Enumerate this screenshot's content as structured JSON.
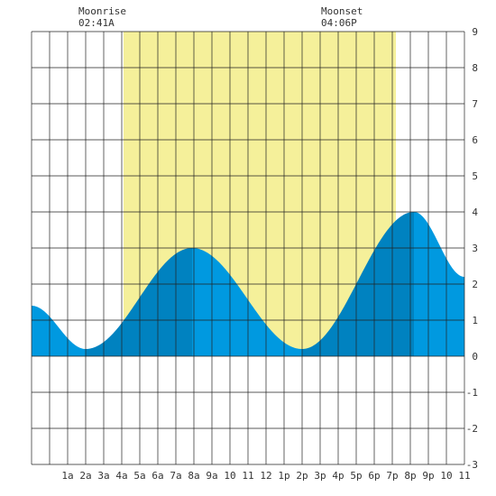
{
  "moon": {
    "rise_label": "Moonrise",
    "rise_time": "02:41A",
    "set_label": "Moonset",
    "set_time": "04:06P"
  },
  "colors": {
    "background": "#ffffff",
    "daylight": "#f5f09a",
    "tide_light": "#0099e0",
    "tide_dark": "#0082c0",
    "grid": "#222222",
    "text": "#333333"
  },
  "chart_data": {
    "type": "area",
    "x_unit": "hour of day",
    "xlim": [
      -1,
      23
    ],
    "ylim": [
      -3,
      9
    ],
    "x_tick_labels": [
      {
        "hour": 1,
        "label": "1a"
      },
      {
        "hour": 2,
        "label": "2a"
      },
      {
        "hour": 3,
        "label": "3a"
      },
      {
        "hour": 4,
        "label": "4a"
      },
      {
        "hour": 5,
        "label": "5a"
      },
      {
        "hour": 6,
        "label": "6a"
      },
      {
        "hour": 7,
        "label": "7a"
      },
      {
        "hour": 8,
        "label": "8a"
      },
      {
        "hour": 9,
        "label": "9a"
      },
      {
        "hour": 10,
        "label": "10"
      },
      {
        "hour": 11,
        "label": "11"
      },
      {
        "hour": 12,
        "label": "12"
      },
      {
        "hour": 13,
        "label": "1p"
      },
      {
        "hour": 14,
        "label": "2p"
      },
      {
        "hour": 15,
        "label": "3p"
      },
      {
        "hour": 16,
        "label": "4p"
      },
      {
        "hour": 17,
        "label": "5p"
      },
      {
        "hour": 18,
        "label": "6p"
      },
      {
        "hour": 19,
        "label": "7p"
      },
      {
        "hour": 20,
        "label": "8p"
      },
      {
        "hour": 21,
        "label": "9p"
      },
      {
        "hour": 22,
        "label": "10"
      },
      {
        "hour": 23,
        "label": "11"
      }
    ],
    "y_ticks": [
      9,
      8,
      7,
      6,
      5,
      4,
      3,
      2,
      1,
      0,
      -1,
      -2,
      -3
    ],
    "daylight": {
      "start": 4.1,
      "end": 19.2
    },
    "tide_extremes": [
      {
        "hour": 2.0,
        "height": 0.2,
        "type": "low"
      },
      {
        "hour": 7.9,
        "height": 3.0,
        "type": "high"
      },
      {
        "hour": 14.0,
        "height": 0.2,
        "type": "low"
      },
      {
        "hour": 20.2,
        "height": 4.0,
        "type": "high"
      }
    ],
    "tide_edges": [
      {
        "hour": -1.0,
        "height": 1.4
      },
      {
        "hour": 23.0,
        "height": 2.2
      }
    ],
    "grid": true
  }
}
